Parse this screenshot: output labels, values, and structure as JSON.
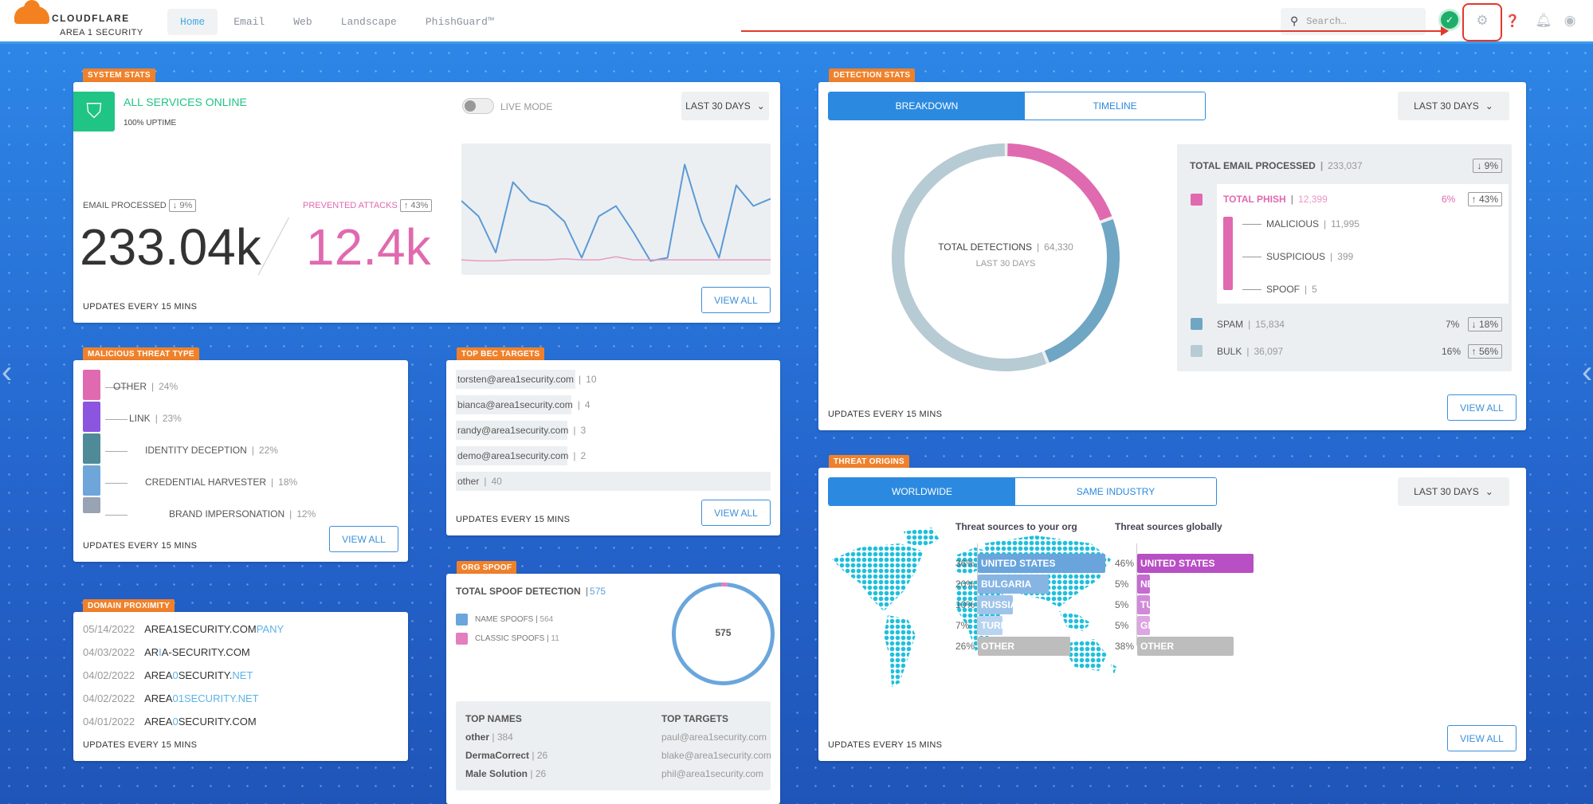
{
  "header": {
    "brand": "CLOUDFLARE",
    "sub_brand": "AREA 1 SECURITY",
    "nav": [
      {
        "label": "Home",
        "active": true
      },
      {
        "label": "Email"
      },
      {
        "label": "Web"
      },
      {
        "label": "Landscape"
      },
      {
        "label": "PhishGuard™"
      }
    ],
    "search_placeholder": "Search…",
    "icons": [
      "shield-check-icon",
      "gear-icon",
      "help-icon",
      "bell-icon",
      "user-icon"
    ]
  },
  "common": {
    "updates": "UPDATES EVERY 15 MINS",
    "view_all": "VIEW ALL",
    "range": "LAST 30 DAYS"
  },
  "system_stats": {
    "tag": "SYSTEM STATS",
    "status": "ALL SERVICES ONLINE",
    "uptime": "100% UPTIME",
    "live_mode": "LIVE MODE",
    "live_mode_on": false,
    "email_label": "EMAIL PROCESSED",
    "email_change": "↓ 9%",
    "email_value": "233.04k",
    "prevented_label": "PREVENTED ATTACKS",
    "prevented_change": "↑ 43%",
    "prevented_value": "12.4k",
    "trend_email": [
      60,
      45,
      10,
      78,
      60,
      55,
      40,
      5,
      45,
      55,
      30,
      2,
      5,
      95,
      40,
      5,
      75,
      55,
      62
    ],
    "trend_attacks": [
      3,
      2,
      2,
      3,
      3,
      3,
      4,
      3,
      3,
      6,
      3,
      3,
      3,
      3,
      3,
      3,
      3,
      3,
      3
    ]
  },
  "detection_stats": {
    "tag": "DETECTION STATS",
    "tabs": [
      "BREAKDOWN",
      "TIMELINE"
    ],
    "total_label": "TOTAL DETECTIONS",
    "total": "64,330",
    "period": "LAST 30 DAYS",
    "total_email_label": "TOTAL EMAIL PROCESSED",
    "total_email": "233,037",
    "total_email_change": "↓ 9%",
    "phish": {
      "label": "TOTAL PHISH",
      "value": "12,399",
      "count": 12399,
      "pct": "6%",
      "change": "↑ 43%",
      "color": "#e06aaf"
    },
    "sub": [
      {
        "label": "MALICIOUS",
        "value": "11,995"
      },
      {
        "label": "SUSPICIOUS",
        "value": "399"
      },
      {
        "label": "SPOOF",
        "value": "5"
      }
    ],
    "spam": {
      "label": "SPAM",
      "value": "15,834",
      "count": 15834,
      "pct": "7%",
      "change": "↓ 18%",
      "color": "#6ea6c4"
    },
    "bulk": {
      "label": "BULK",
      "value": "36,097",
      "count": 36097,
      "pct": "16%",
      "change": "↑ 56%",
      "color": "#b6cbd3"
    }
  },
  "threat_type": {
    "tag": "MALICIOUS THREAT TYPE",
    "items": [
      {
        "label": "OTHER",
        "pct": "24%",
        "color": "#e06aaf"
      },
      {
        "label": "LINK",
        "pct": "23%",
        "color": "#8b55e0"
      },
      {
        "label": "IDENTITY DECEPTION",
        "pct": "22%",
        "color": "#4f8a99"
      },
      {
        "label": "CREDENTIAL HARVESTER",
        "pct": "18%",
        "color": "#6ea6d9"
      },
      {
        "label": "BRAND IMPERSONATION",
        "pct": "12%",
        "color": "#98a3b3"
      }
    ]
  },
  "bec": {
    "tag": "TOP BEC TARGETS",
    "items": [
      {
        "email": "torsten@area1security.com",
        "count": "10"
      },
      {
        "email": "bianca@area1security.com",
        "count": "4"
      },
      {
        "email": "randy@area1security.com",
        "count": "3"
      },
      {
        "email": "demo@area1security.com",
        "count": "2"
      },
      {
        "email": "other",
        "count": "40"
      }
    ]
  },
  "domains": {
    "tag": "DOMAIN PROXIMITY",
    "items": [
      {
        "date": "05/14/2022",
        "parts": [
          "AREA1SECURITY.COM",
          "PANY",
          ""
        ]
      },
      {
        "date": "04/03/2022",
        "parts": [
          "AR",
          "I",
          "A-SECURITY.COM"
        ]
      },
      {
        "date": "04/02/2022",
        "parts": [
          "AREA",
          "0",
          "SECURITY.",
          "NET"
        ]
      },
      {
        "date": "04/02/2022",
        "parts": [
          "AREA",
          "01SECURITY.NET",
          ""
        ]
      },
      {
        "date": "04/01/2022",
        "parts": [
          "AREA",
          "0",
          "SECURITY.COM"
        ]
      }
    ]
  },
  "org_spoof": {
    "tag": "ORG SPOOF",
    "title": "TOTAL SPOOF DETECTION",
    "total": "575",
    "name_spoofs": {
      "label": "NAME SPOOFS",
      "value": "564",
      "count": 564,
      "color": "#6aa6dc"
    },
    "classic_spoofs": {
      "label": "CLASSIC SPOOFS",
      "value": "11",
      "count": 11,
      "color": "#e37fbf"
    },
    "top_names_label": "TOP NAMES",
    "top_names": [
      {
        "name": "other",
        "value": "384"
      },
      {
        "name": "DermaCorrect",
        "value": "26"
      },
      {
        "name": "Male Solution",
        "value": "26"
      }
    ],
    "top_targets_label": "TOP TARGETS",
    "top_targets": [
      "paul@area1security.com",
      "blake@area1security.com",
      "phil@area1security.com"
    ]
  },
  "threat_origins": {
    "tag": "THREAT ORIGINS",
    "tabs": [
      "WORLDWIDE",
      "SAME INDUSTRY"
    ],
    "org_title": "Threat sources to your org",
    "org": [
      {
        "pct": "36%",
        "v": 36,
        "label": "UNITED STATES",
        "color": "#69a5dc"
      },
      {
        "pct": "20%",
        "v": 20,
        "label": "BULGARIA",
        "color": "#86b5e4"
      },
      {
        "pct": "10%",
        "v": 10,
        "label": "RUSSIA",
        "color": "#9fc4ea"
      },
      {
        "pct": "7%",
        "v": 7,
        "label": "TURKEY",
        "color": "#b9d4f0"
      },
      {
        "pct": "26%",
        "v": 26,
        "label": "OTHER",
        "color": "#bdbdbd"
      }
    ],
    "global_title": "Threat sources globally",
    "global": [
      {
        "pct": "46%",
        "v": 46,
        "label": "UNITED STATES",
        "color": "#b84fc4"
      },
      {
        "pct": "5%",
        "v": 5,
        "label": "NETHERLANDS",
        "color": "#c56cd0"
      },
      {
        "pct": "5%",
        "v": 5,
        "label": "TURKEY",
        "color": "#d18ad9"
      },
      {
        "pct": "5%",
        "v": 5,
        "label": "GERMANY",
        "color": "#dca6e2"
      },
      {
        "pct": "38%",
        "v": 38,
        "label": "OTHER",
        "color": "#bdbdbd"
      }
    ]
  }
}
